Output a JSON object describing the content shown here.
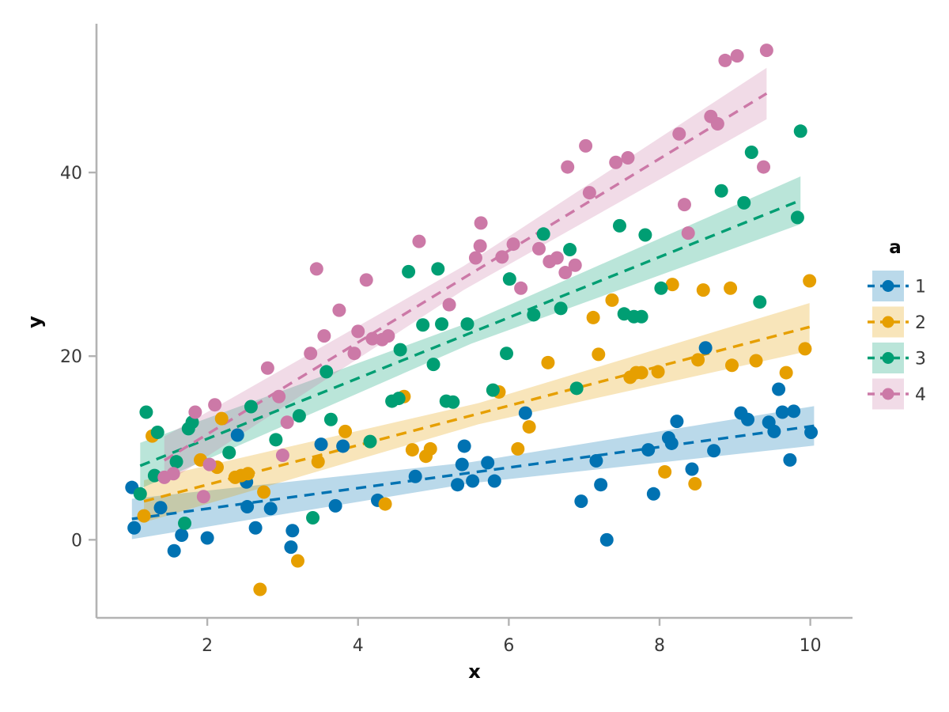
{
  "figure": {
    "background": "#ffffff",
    "spine_color": "#b3b3b3",
    "tick_color": "#b3b3b3",
    "tick_label_color": "#3a3a3a"
  },
  "chart_data": {
    "type": "scatter",
    "title": "",
    "xlabel": "x",
    "ylabel": "y",
    "x_ticks": [
      2,
      4,
      6,
      8,
      10
    ],
    "y_ticks": [
      0,
      20,
      40
    ],
    "xlim": [
      0.53,
      10.56
    ],
    "ylim": [
      -8.5,
      56.2
    ],
    "grid": false,
    "legend": {
      "title": "a",
      "position": "right-center"
    },
    "series": [
      {
        "name": "1",
        "color": "#0072B2",
        "band_opacity": 0.27,
        "marker": "circle",
        "line_style": "dashed",
        "line": {
          "slope": 1.12,
          "intercept": 1.15,
          "x_start": 1.0,
          "x_end": 10.05
        },
        "band": {
          "x_mid": 5.5,
          "w_start": 2.2,
          "w_mid": 1.15,
          "w_end": 2.15
        },
        "points": [
          [
            1.0,
            5.7
          ],
          [
            1.03,
            1.3
          ],
          [
            1.38,
            3.5
          ],
          [
            1.56,
            -1.2
          ],
          [
            1.66,
            0.5
          ],
          [
            2.0,
            0.2
          ],
          [
            2.4,
            11.4
          ],
          [
            2.52,
            6.3
          ],
          [
            2.53,
            3.6
          ],
          [
            2.64,
            1.3
          ],
          [
            2.84,
            3.4
          ],
          [
            3.11,
            -0.8
          ],
          [
            3.13,
            1.0
          ],
          [
            3.51,
            10.4
          ],
          [
            3.7,
            3.7
          ],
          [
            3.8,
            10.2
          ],
          [
            4.26,
            4.3
          ],
          [
            4.76,
            6.9
          ],
          [
            5.32,
            6.0
          ],
          [
            5.38,
            8.2
          ],
          [
            5.41,
            10.2
          ],
          [
            5.52,
            6.4
          ],
          [
            5.72,
            8.4
          ],
          [
            5.81,
            6.4
          ],
          [
            6.22,
            13.8
          ],
          [
            6.96,
            4.2
          ],
          [
            7.16,
            8.6
          ],
          [
            7.22,
            6.0
          ],
          [
            7.3,
            0.0
          ],
          [
            7.85,
            9.8
          ],
          [
            7.92,
            5.0
          ],
          [
            8.12,
            11.1
          ],
          [
            8.16,
            10.5
          ],
          [
            8.23,
            12.9
          ],
          [
            8.43,
            7.7
          ],
          [
            8.61,
            20.9
          ],
          [
            8.72,
            9.7
          ],
          [
            9.08,
            13.8
          ],
          [
            9.17,
            13.1
          ],
          [
            9.45,
            12.8
          ],
          [
            9.52,
            11.8
          ],
          [
            9.58,
            16.4
          ],
          [
            9.63,
            13.9
          ],
          [
            9.73,
            8.7
          ],
          [
            9.78,
            14.0
          ],
          [
            10.01,
            11.7
          ]
        ]
      },
      {
        "name": "2",
        "color": "#E69F00",
        "band_opacity": 0.27,
        "marker": "circle",
        "line_style": "dashed",
        "line": {
          "slope": 2.15,
          "intercept": 1.7,
          "x_start": 1.16,
          "x_end": 9.99
        },
        "band": {
          "x_mid": 5.6,
          "w_start": 2.3,
          "w_mid": 1.15,
          "w_end": 2.6
        },
        "points": [
          [
            1.16,
            2.6
          ],
          [
            1.27,
            11.3
          ],
          [
            1.91,
            8.7
          ],
          [
            2.13,
            7.9
          ],
          [
            2.19,
            13.2
          ],
          [
            2.37,
            6.8
          ],
          [
            2.45,
            7.0
          ],
          [
            2.54,
            7.2
          ],
          [
            2.7,
            -5.4
          ],
          [
            2.75,
            5.2
          ],
          [
            3.2,
            -2.3
          ],
          [
            3.47,
            8.5
          ],
          [
            3.83,
            11.8
          ],
          [
            4.36,
            3.9
          ],
          [
            4.61,
            15.6
          ],
          [
            4.72,
            9.8
          ],
          [
            4.9,
            9.1
          ],
          [
            4.96,
            9.9
          ],
          [
            5.87,
            16.1
          ],
          [
            6.12,
            9.9
          ],
          [
            6.27,
            12.3
          ],
          [
            6.52,
            19.3
          ],
          [
            7.12,
            24.2
          ],
          [
            7.19,
            20.2
          ],
          [
            7.37,
            26.1
          ],
          [
            7.61,
            17.7
          ],
          [
            7.69,
            18.2
          ],
          [
            7.76,
            18.2
          ],
          [
            7.98,
            18.3
          ],
          [
            8.07,
            7.4
          ],
          [
            8.17,
            27.8
          ],
          [
            8.47,
            6.1
          ],
          [
            8.51,
            19.6
          ],
          [
            8.58,
            27.2
          ],
          [
            8.94,
            27.4
          ],
          [
            8.96,
            19.0
          ],
          [
            9.28,
            19.5
          ],
          [
            9.68,
            18.2
          ],
          [
            9.93,
            20.8
          ],
          [
            9.99,
            28.2
          ]
        ]
      },
      {
        "name": "3",
        "color": "#009E73",
        "band_opacity": 0.27,
        "marker": "circle",
        "line_style": "dashed",
        "line": {
          "slope": 3.3,
          "intercept": 4.4,
          "x_start": 1.11,
          "x_end": 9.87
        },
        "band": {
          "x_mid": 5.5,
          "w_start": 2.5,
          "w_mid": 1.2,
          "w_end": 2.6
        },
        "points": [
          [
            1.11,
            5.0
          ],
          [
            1.19,
            13.9
          ],
          [
            1.3,
            7.0
          ],
          [
            1.34,
            11.7
          ],
          [
            1.59,
            8.5
          ],
          [
            1.7,
            1.8
          ],
          [
            1.75,
            12.1
          ],
          [
            1.8,
            12.8
          ],
          [
            2.29,
            9.5
          ],
          [
            2.58,
            14.5
          ],
          [
            2.91,
            10.9
          ],
          [
            3.22,
            13.5
          ],
          [
            3.4,
            2.4
          ],
          [
            3.58,
            18.3
          ],
          [
            3.64,
            13.1
          ],
          [
            4.16,
            10.7
          ],
          [
            4.45,
            15.1
          ],
          [
            4.54,
            15.4
          ],
          [
            4.56,
            20.7
          ],
          [
            4.67,
            29.2
          ],
          [
            4.86,
            23.4
          ],
          [
            5.0,
            19.1
          ],
          [
            5.06,
            29.5
          ],
          [
            5.11,
            23.5
          ],
          [
            5.17,
            15.1
          ],
          [
            5.26,
            15.0
          ],
          [
            5.45,
            23.5
          ],
          [
            5.79,
            16.3
          ],
          [
            5.97,
            20.3
          ],
          [
            6.01,
            28.4
          ],
          [
            6.33,
            24.5
          ],
          [
            6.46,
            33.3
          ],
          [
            6.69,
            25.2
          ],
          [
            6.81,
            31.6
          ],
          [
            6.9,
            16.5
          ],
          [
            7.47,
            34.2
          ],
          [
            7.53,
            24.6
          ],
          [
            7.66,
            24.3
          ],
          [
            7.76,
            24.3
          ],
          [
            7.81,
            33.2
          ],
          [
            8.02,
            27.4
          ],
          [
            8.82,
            38.0
          ],
          [
            9.12,
            36.7
          ],
          [
            9.22,
            42.2
          ],
          [
            9.33,
            25.9
          ],
          [
            9.83,
            35.1
          ],
          [
            9.87,
            44.5
          ]
        ]
      },
      {
        "name": "4",
        "color": "#CC79A7",
        "band_opacity": 0.27,
        "marker": "circle",
        "line_style": "dashed",
        "line": {
          "slope": 5.0,
          "intercept": 1.5,
          "x_start": 1.43,
          "x_end": 9.42
        },
        "band": {
          "x_mid": 5.4,
          "w_start": 2.6,
          "w_mid": 1.3,
          "w_end": 2.8
        },
        "points": [
          [
            1.43,
            6.8
          ],
          [
            1.55,
            7.2
          ],
          [
            1.84,
            13.9
          ],
          [
            1.95,
            4.7
          ],
          [
            2.03,
            8.2
          ],
          [
            2.1,
            14.7
          ],
          [
            2.8,
            18.7
          ],
          [
            2.95,
            15.6
          ],
          [
            3.0,
            9.2
          ],
          [
            3.06,
            12.8
          ],
          [
            3.37,
            20.3
          ],
          [
            3.45,
            29.5
          ],
          [
            3.55,
            22.2
          ],
          [
            3.75,
            25.0
          ],
          [
            3.95,
            20.3
          ],
          [
            4.0,
            22.7
          ],
          [
            4.11,
            28.3
          ],
          [
            4.19,
            21.9
          ],
          [
            4.32,
            21.8
          ],
          [
            4.4,
            22.2
          ],
          [
            4.81,
            32.5
          ],
          [
            5.21,
            25.6
          ],
          [
            5.56,
            30.7
          ],
          [
            5.62,
            32.0
          ],
          [
            5.63,
            34.5
          ],
          [
            5.91,
            30.8
          ],
          [
            6.06,
            32.2
          ],
          [
            6.16,
            27.4
          ],
          [
            6.4,
            31.7
          ],
          [
            6.54,
            30.3
          ],
          [
            6.64,
            30.7
          ],
          [
            6.75,
            29.1
          ],
          [
            6.78,
            40.6
          ],
          [
            6.88,
            29.9
          ],
          [
            7.02,
            42.9
          ],
          [
            7.07,
            37.8
          ],
          [
            7.42,
            41.1
          ],
          [
            7.58,
            41.6
          ],
          [
            8.26,
            44.2
          ],
          [
            8.33,
            36.5
          ],
          [
            8.38,
            33.4
          ],
          [
            8.68,
            46.1
          ],
          [
            8.77,
            45.3
          ],
          [
            8.87,
            52.2
          ],
          [
            9.03,
            52.7
          ],
          [
            9.38,
            40.6
          ],
          [
            9.42,
            53.3
          ]
        ]
      }
    ]
  }
}
